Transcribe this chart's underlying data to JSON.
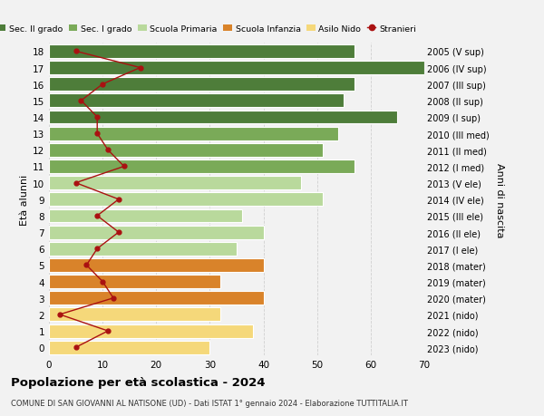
{
  "ages": [
    18,
    17,
    16,
    15,
    14,
    13,
    12,
    11,
    10,
    9,
    8,
    7,
    6,
    5,
    4,
    3,
    2,
    1,
    0
  ],
  "bar_values": [
    57,
    70,
    57,
    55,
    65,
    54,
    51,
    57,
    47,
    51,
    36,
    40,
    35,
    40,
    32,
    40,
    32,
    38,
    30
  ],
  "stranieri": [
    5,
    17,
    10,
    6,
    9,
    9,
    11,
    14,
    5,
    13,
    9,
    13,
    9,
    7,
    10,
    12,
    2,
    11,
    5
  ],
  "right_labels": [
    "2005 (V sup)",
    "2006 (IV sup)",
    "2007 (III sup)",
    "2008 (II sup)",
    "2009 (I sup)",
    "2010 (III med)",
    "2011 (II med)",
    "2012 (I med)",
    "2013 (V ele)",
    "2014 (IV ele)",
    "2015 (III ele)",
    "2016 (II ele)",
    "2017 (I ele)",
    "2018 (mater)",
    "2019 (mater)",
    "2020 (mater)",
    "2021 (nido)",
    "2022 (nido)",
    "2023 (nido)"
  ],
  "bar_colors": [
    "#4e7d3a",
    "#4e7d3a",
    "#4e7d3a",
    "#4e7d3a",
    "#4e7d3a",
    "#7aaa58",
    "#7aaa58",
    "#7aaa58",
    "#b9d99c",
    "#b9d99c",
    "#b9d99c",
    "#b9d99c",
    "#b9d99c",
    "#d9832a",
    "#d9832a",
    "#d9832a",
    "#f5d87a",
    "#f5d87a",
    "#f5d87a"
  ],
  "legend_entries": [
    {
      "label": "Sec. II grado",
      "color": "#4e7d3a"
    },
    {
      "label": "Sec. I grado",
      "color": "#7aaa58"
    },
    {
      "label": "Scuola Primaria",
      "color": "#b9d99c"
    },
    {
      "label": "Scuola Infanzia",
      "color": "#d9832a"
    },
    {
      "label": "Asilo Nido",
      "color": "#f5d87a"
    },
    {
      "label": "Stranieri",
      "color": "#aa1111"
    }
  ],
  "ylabel_left": "Età alunni",
  "ylabel_right": "Anni di nascita",
  "title": "Popolazione per età scolastica - 2024",
  "subtitle": "COMUNE DI SAN GIOVANNI AL NATISONE (UD) - Dati ISTAT 1° gennaio 2024 - Elaborazione TUTTITALIA.IT",
  "xlim": [
    0,
    70
  ],
  "stranieri_color": "#aa1111",
  "grid_color": "#d0d0d0",
  "bg_color": "#f2f2f2"
}
